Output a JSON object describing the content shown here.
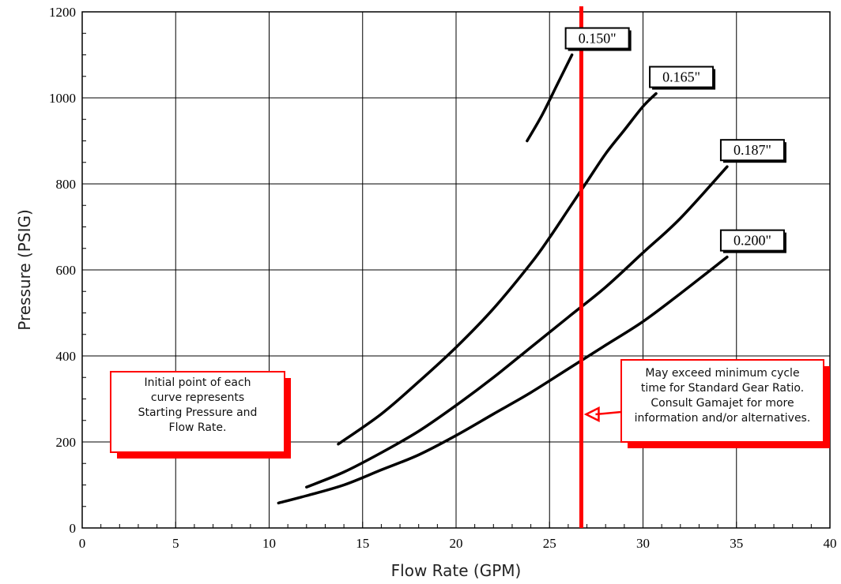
{
  "chart_data": {
    "type": "line",
    "title": "",
    "xlabel": "Flow Rate (GPM)",
    "ylabel": "Pressure (PSIG)",
    "xlim": [
      0,
      40
    ],
    "ylim": [
      0,
      1200
    ],
    "xticks": [
      0,
      5,
      10,
      15,
      20,
      25,
      30,
      35,
      40
    ],
    "yticks": [
      0,
      200,
      400,
      600,
      800,
      1000,
      1200
    ],
    "grid": true,
    "series": [
      {
        "name": "0.150\"",
        "color": "#000000",
        "x": [
          23.8,
          24.6,
          25.4,
          26.2
        ],
        "y": [
          900,
          960,
          1030,
          1100
        ]
      },
      {
        "name": "0.165\"",
        "color": "#000000",
        "x": [
          13.7,
          16,
          18,
          20,
          22,
          24,
          25,
          26,
          27,
          28,
          29,
          30,
          30.7
        ],
        "y": [
          195,
          265,
          340,
          420,
          510,
          615,
          675,
          740,
          805,
          870,
          925,
          980,
          1010
        ]
      },
      {
        "name": "0.187\"",
        "color": "#000000",
        "x": [
          12,
          14,
          16,
          18,
          20,
          22,
          24,
          26,
          28,
          30,
          32,
          34.5
        ],
        "y": [
          95,
          130,
          175,
          225,
          285,
          350,
          420,
          490,
          560,
          640,
          720,
          840
        ]
      },
      {
        "name": "0.200\"",
        "color": "#000000",
        "x": [
          10.5,
          12,
          14,
          16,
          18,
          20,
          22,
          24,
          26,
          28,
          30,
          32,
          34.5
        ],
        "y": [
          58,
          75,
          100,
          135,
          170,
          215,
          265,
          315,
          370,
          425,
          480,
          545,
          630
        ]
      }
    ],
    "reference_line": {
      "x": 26.7,
      "color": "#ff0000"
    },
    "annotations": [
      {
        "lines": [
          "Initial point of each",
          "curve represents",
          "Starting Pressure and",
          "Flow Rate."
        ]
      },
      {
        "lines": [
          "May exceed minimum cycle",
          "time for Standard Gear Ratio.",
          "Consult Gamajet for more",
          "information and/or alternatives."
        ]
      }
    ]
  }
}
